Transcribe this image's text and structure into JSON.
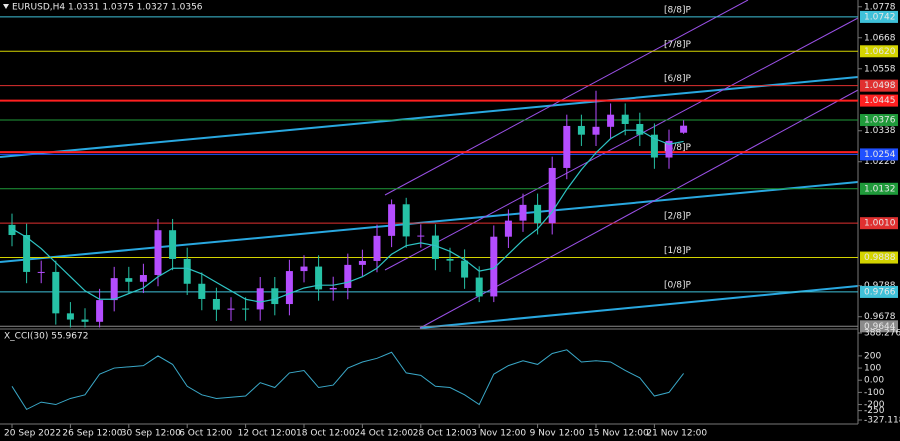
{
  "chart_data": [
    {
      "type": "candlestick",
      "title": "EURUSD,H4 1.0331 1.0375 1.0327 1.0356",
      "categories": [
        "20 Sep 2022",
        null,
        null,
        null,
        "26 Sep 12:00",
        null,
        null,
        null,
        "30 Sep 12:00",
        null,
        null,
        null,
        "6 Oct 12:00",
        null,
        null,
        null,
        "12 Oct 12:00",
        null,
        null,
        null,
        "18 Oct 12:00",
        null,
        null,
        null,
        "24 Oct 12:00",
        null,
        null,
        null,
        "28 Oct 12:00",
        null,
        null,
        null,
        "3 Nov 12:00",
        null,
        null,
        null,
        "9 Nov 12:00",
        null,
        null,
        null,
        "15 Nov 12:00",
        null,
        null,
        null,
        "21 Nov 12:00",
        null,
        null
      ],
      "open": [
        1.0004,
        0.9968,
        0.9837,
        0.9837,
        0.969,
        0.9668,
        0.966,
        0.9737,
        0.9815,
        0.9802,
        0.9826,
        0.9985,
        0.9883,
        0.9795,
        0.9741,
        0.9703,
        0.9707,
        0.9704,
        0.9779,
        0.9723,
        0.984,
        0.9856,
        0.9775,
        0.978,
        0.9862,
        0.9876,
        0.9965,
        1.0077,
        0.9963,
        0.9966,
        0.9883,
        0.9877,
        0.9817,
        0.975,
        0.9962,
        1.0019,
        1.0075,
        1.001,
        1.0206,
        1.0355,
        1.0324,
        1.0352,
        1.0395,
        1.0362,
        1.0324,
        1.0243,
        1.0331
      ],
      "high": [
        1.0044,
        1.0008,
        0.9877,
        0.9877,
        0.973,
        0.9708,
        0.9777,
        0.9855,
        0.9855,
        0.9866,
        1.0025,
        1.0025,
        0.9923,
        0.9835,
        0.9781,
        0.9747,
        0.9747,
        0.9819,
        0.9819,
        0.988,
        0.9896,
        0.9896,
        0.982,
        0.9902,
        0.9916,
        1.0005,
        1.0094,
        1.01,
        1.0006,
        1.0006,
        0.9923,
        0.9917,
        0.9857,
        1.0002,
        1.0059,
        1.0115,
        1.0115,
        1.0246,
        1.0395,
        1.0395,
        1.048,
        1.0435,
        1.0435,
        1.0402,
        1.0364,
        1.0342,
        1.0375
      ],
      "low": [
        0.9928,
        0.9797,
        0.9797,
        0.965,
        0.964,
        0.964,
        0.964,
        0.9697,
        0.9762,
        0.9762,
        0.9786,
        0.9843,
        0.9755,
        0.9701,
        0.9663,
        0.9663,
        0.9664,
        0.9664,
        0.9683,
        0.9683,
        0.98,
        0.9735,
        0.9735,
        0.974,
        0.9822,
        0.9836,
        0.9925,
        0.9923,
        0.9923,
        0.9843,
        0.9837,
        0.9777,
        0.973,
        0.973,
        0.9922,
        0.9979,
        0.997,
        0.997,
        1.0166,
        1.0284,
        1.0284,
        1.0312,
        1.0322,
        1.0284,
        1.0203,
        1.0203,
        1.0327
      ],
      "close": [
        0.9968,
        0.9837,
        0.9837,
        0.969,
        0.9668,
        0.966,
        0.9737,
        0.9815,
        0.9802,
        0.9826,
        0.9985,
        0.9883,
        0.9795,
        0.9741,
        0.9703,
        0.9707,
        0.9704,
        0.9779,
        0.9723,
        0.984,
        0.9856,
        0.9775,
        0.978,
        0.9862,
        0.9876,
        0.9965,
        1.0077,
        0.9963,
        0.9966,
        0.9883,
        0.9877,
        0.9817,
        0.975,
        0.9962,
        1.0019,
        1.0075,
        1.001,
        1.0206,
        1.0355,
        1.0324,
        1.0352,
        1.0395,
        1.0362,
        1.0324,
        1.0243,
        1.0302,
        1.0356
      ],
      "up_color": "#b44dff",
      "down_color": "#26c2a6",
      "ma": {
        "color": "#2ec4c4",
        "values": [
          0.999,
          0.996,
          0.992,
          0.987,
          0.982,
          0.977,
          0.974,
          0.974,
          0.976,
          0.978,
          0.982,
          0.985,
          0.985,
          0.983,
          0.98,
          0.977,
          0.974,
          0.973,
          0.974,
          0.976,
          0.978,
          0.979,
          0.979,
          0.98,
          0.982,
          0.985,
          0.99,
          0.993,
          0.994,
          0.993,
          0.991,
          0.988,
          0.984,
          0.985,
          0.99,
          0.995,
          0.999,
          1.005,
          1.013,
          1.02,
          1.026,
          1.031,
          1.034,
          1.034,
          1.031,
          1.029,
          1.03
        ]
      },
      "levels": [
        {
          "name": "[8/8]P",
          "value": 1.0742,
          "label": "1.0742",
          "color": "#3fc1d9"
        },
        {
          "name": "[7/8]P",
          "value": 1.062,
          "label": "1.0620",
          "color": "#d4d400"
        },
        {
          "name": "[6/8]P",
          "value": 1.0498,
          "label": "1.0498",
          "color": "#e03030"
        },
        {
          "value": 1.0445,
          "label": "1.0445",
          "color": "#ff2020",
          "bold": true
        },
        {
          "value": 1.0376,
          "label": "1.0376",
          "color": "#1f9a3a"
        },
        {
          "value": 1.0262,
          "color": "#ff2020",
          "bold": true
        },
        {
          "name": "[4/8]P",
          "value": 1.0254,
          "label": "1.0254",
          "color": "#2050ff"
        },
        {
          "value": 1.0132,
          "label": "1.0132",
          "color": "#1f9a3a"
        },
        {
          "name": "[2/8]P",
          "value": 1.001,
          "label": "1.0010",
          "color": "#e03030"
        },
        {
          "name": "[1/8]P",
          "value": 0.9888,
          "label": "0.9888",
          "color": "#d4d400"
        },
        {
          "name": "[0/8]P",
          "value": 0.9766,
          "label": "0.9766",
          "color": "#3fc1d9"
        },
        {
          "value": 0.9644,
          "label": "0.9644",
          "color": "#8a8a8a"
        }
      ],
      "ylim": [
        0.9638,
        1.0802
      ],
      "yticks": [
        1.0778,
        1.0668,
        1.0558,
        1.0338,
        1.0228,
        0.9788,
        0.9678
      ]
    },
    {
      "type": "line",
      "title": "X_CCI(30) 55.9672",
      "values": [
        -50,
        -240,
        -180,
        -200,
        -150,
        -120,
        50,
        100,
        110,
        120,
        200,
        130,
        -50,
        -120,
        -150,
        -140,
        -130,
        -20,
        -60,
        60,
        80,
        -60,
        -40,
        100,
        150,
        180,
        230,
        60,
        40,
        -50,
        -60,
        -120,
        -200,
        50,
        120,
        160,
        130,
        220,
        250,
        150,
        160,
        150,
        80,
        20,
        -130,
        -100,
        55.9672
      ],
      "color": "#3aa8c8",
      "ylim": [
        -327.1186,
        388.2764
      ],
      "yticks": [
        388.2764,
        200,
        100,
        {
          "value": 0,
          "label": "0.00"
        },
        -100,
        -200,
        -250,
        -327.1186
      ]
    }
  ]
}
